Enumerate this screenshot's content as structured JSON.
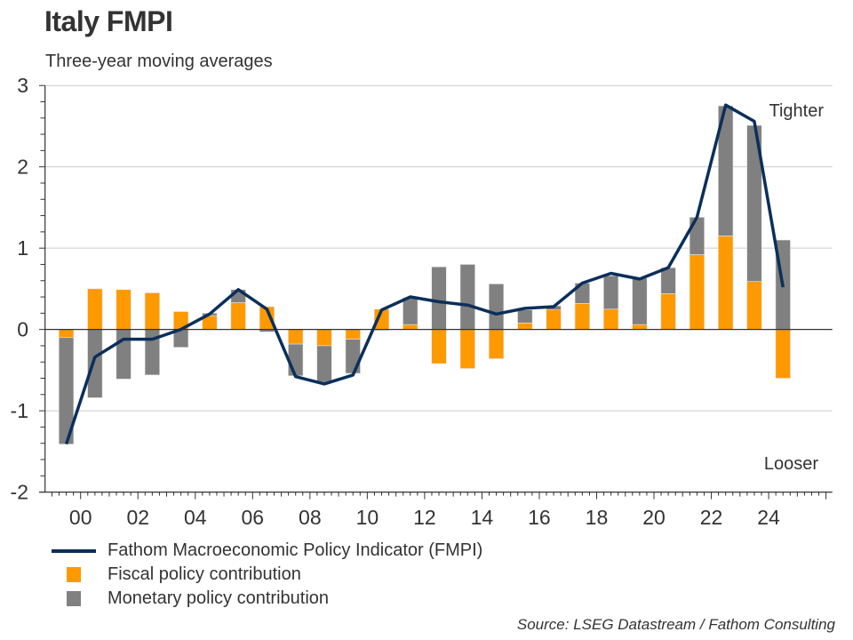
{
  "title": "Italy FMPI",
  "subtitle": "Three-year moving averages",
  "source": "Source: LSEG Datastream / Fathom Consulting",
  "colors": {
    "fmpi": "#0b2f5b",
    "fiscal": "#ff9900",
    "monetary": "#808080",
    "grid": "#cccccc",
    "axis": "#333333"
  },
  "chart_data": {
    "type": "bar",
    "stacked": true,
    "title": "Italy FMPI",
    "subtitle": "Three-year moving averages",
    "xlabel": "",
    "ylabel": "",
    "ylim": [
      -2,
      3
    ],
    "xlim": [
      1998.76,
      2026.22
    ],
    "yticks": [
      -2,
      -1,
      0,
      1,
      2,
      3
    ],
    "ytick_labels": [
      "-2",
      "-1",
      "0",
      "1",
      "2",
      "3"
    ],
    "xticks": [
      2000,
      2002,
      2004,
      2006,
      2008,
      2010,
      2012,
      2014,
      2016,
      2018,
      2020,
      2022,
      2024
    ],
    "xtick_labels": [
      "00",
      "02",
      "04",
      "06",
      "08",
      "10",
      "12",
      "14",
      "16",
      "18",
      "20",
      "22",
      "24"
    ],
    "grid": true,
    "legend_position": "bottom-left",
    "annotations": [
      {
        "text": "Tighter",
        "position": "top-right"
      },
      {
        "text": "Looser",
        "position": "bottom-right"
      }
    ],
    "categories": [
      1999,
      2000,
      2001,
      2002,
      2003,
      2004,
      2005,
      2006,
      2007,
      2008,
      2009,
      2010,
      2011,
      2012,
      2013,
      2014,
      2015,
      2016,
      2017,
      2018,
      2019,
      2020,
      2021,
      2022,
      2023,
      2024
    ],
    "series": [
      {
        "name": "Fathom Macroeconomic Policy Indicator (FMPI)",
        "type": "line",
        "values": [
          -1.41,
          -0.34,
          -0.12,
          -0.12,
          0.0,
          0.19,
          0.49,
          0.25,
          -0.58,
          -0.67,
          -0.56,
          0.24,
          0.4,
          0.34,
          0.3,
          0.19,
          0.26,
          0.28,
          0.57,
          0.69,
          0.62,
          0.76,
          1.38,
          2.76,
          2.56,
          0.52
        ]
      },
      {
        "name": "Fiscal policy contribution",
        "type": "bar",
        "values": [
          -0.1,
          0.5,
          0.49,
          0.45,
          0.22,
          0.17,
          0.33,
          0.28,
          -0.18,
          -0.2,
          -0.12,
          0.25,
          0.06,
          -0.42,
          -0.48,
          -0.36,
          0.08,
          0.24,
          0.32,
          0.25,
          0.06,
          0.44,
          0.92,
          1.15,
          0.59,
          -0.6
        ]
      },
      {
        "name": "Monetary policy contribution",
        "type": "bar",
        "values": [
          -1.31,
          -0.84,
          -0.61,
          -0.56,
          -0.22,
          0.03,
          0.16,
          -0.03,
          -0.39,
          -0.45,
          -0.42,
          -0.01,
          0.33,
          0.77,
          0.8,
          0.56,
          0.16,
          0.05,
          0.25,
          0.41,
          0.57,
          0.32,
          0.46,
          1.6,
          1.92,
          1.1
        ]
      }
    ]
  },
  "legend": [
    {
      "label": "Fathom Macroeconomic Policy Indicator (FMPI)",
      "kind": "line"
    },
    {
      "label": "Fiscal policy contribution",
      "kind": "fiscal"
    },
    {
      "label": "Monetary policy contribution",
      "kind": "monetary"
    }
  ]
}
